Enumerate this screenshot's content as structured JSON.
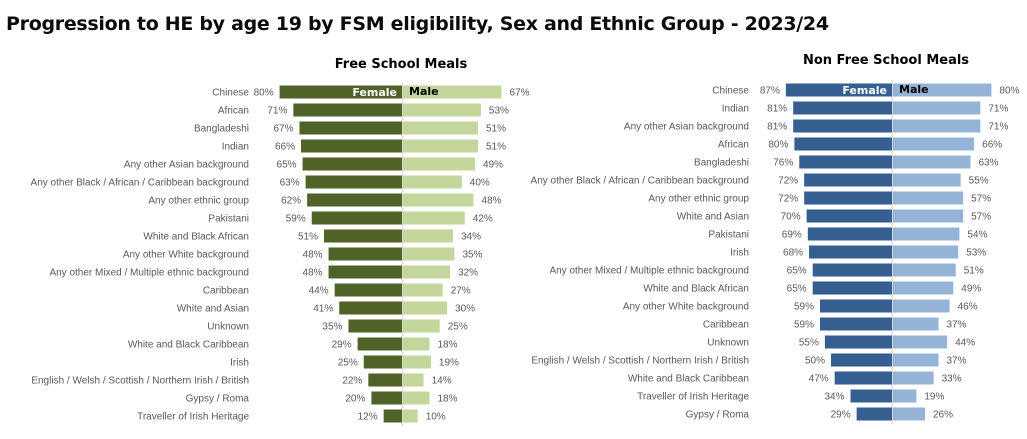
{
  "title": "Progression to HE by age 19 by FSM eligibility, Sex and Ethnic Group - 2023/24",
  "chart_data": [
    {
      "type": "bar",
      "orientation": "horizontal-diverging",
      "title": "Free School Meals",
      "legend": [
        "Female",
        "Male"
      ],
      "colors": {
        "female": "#4f6228",
        "male": "#c3d69b"
      },
      "unit": "%",
      "categories": [
        "Chinese",
        "African",
        "Bangladeshi",
        "Indian",
        "Any other Asian background",
        "Any other Black / African / Caribbean background",
        "Any other ethnic group",
        "Pakistani",
        "White and Black African",
        "Any other White background",
        "Any other Mixed / Multiple ethnic background",
        "Caribbean",
        "White and Asian",
        "Unknown",
        "White and Black Caribbean",
        "Irish",
        "English / Welsh / Scottish / Northern Irish / British",
        "Gypsy / Roma",
        "Traveller of Irish Heritage"
      ],
      "series": [
        {
          "name": "Female",
          "values": [
            80,
            71,
            67,
            66,
            65,
            63,
            62,
            59,
            51,
            48,
            48,
            44,
            41,
            35,
            29,
            25,
            22,
            20,
            12
          ]
        },
        {
          "name": "Male",
          "values": [
            67,
            53,
            51,
            51,
            49,
            40,
            48,
            42,
            34,
            35,
            32,
            27,
            30,
            25,
            18,
            19,
            14,
            18,
            10
          ]
        }
      ]
    },
    {
      "type": "bar",
      "orientation": "horizontal-diverging",
      "title": "Non Free School Meals",
      "legend": [
        "Female",
        "Male"
      ],
      "colors": {
        "female": "#355e91",
        "male": "#95b3d7"
      },
      "unit": "%",
      "categories": [
        "Chinese",
        "Indian",
        "Any other Asian background",
        "African",
        "Bangladeshi",
        "Any other Black / African / Caribbean background",
        "Any other ethnic group",
        "White and Asian",
        "Pakistani",
        "Irish",
        "Any other Mixed / Multiple ethnic background",
        "White and Black African",
        "Any other White background",
        "Caribbean",
        "Unknown",
        "English / Welsh / Scottish / Northern Irish / British",
        "White and Black Caribbean",
        "Traveller of Irish Heritage",
        "Gypsy / Roma"
      ],
      "series": [
        {
          "name": "Female",
          "values": [
            87,
            81,
            81,
            80,
            76,
            72,
            72,
            70,
            69,
            68,
            65,
            65,
            59,
            59,
            55,
            50,
            47,
            34,
            29
          ]
        },
        {
          "name": "Male",
          "values": [
            80,
            71,
            71,
            66,
            63,
            55,
            57,
            57,
            54,
            53,
            51,
            49,
            46,
            37,
            44,
            37,
            33,
            19,
            26
          ]
        }
      ]
    }
  ]
}
